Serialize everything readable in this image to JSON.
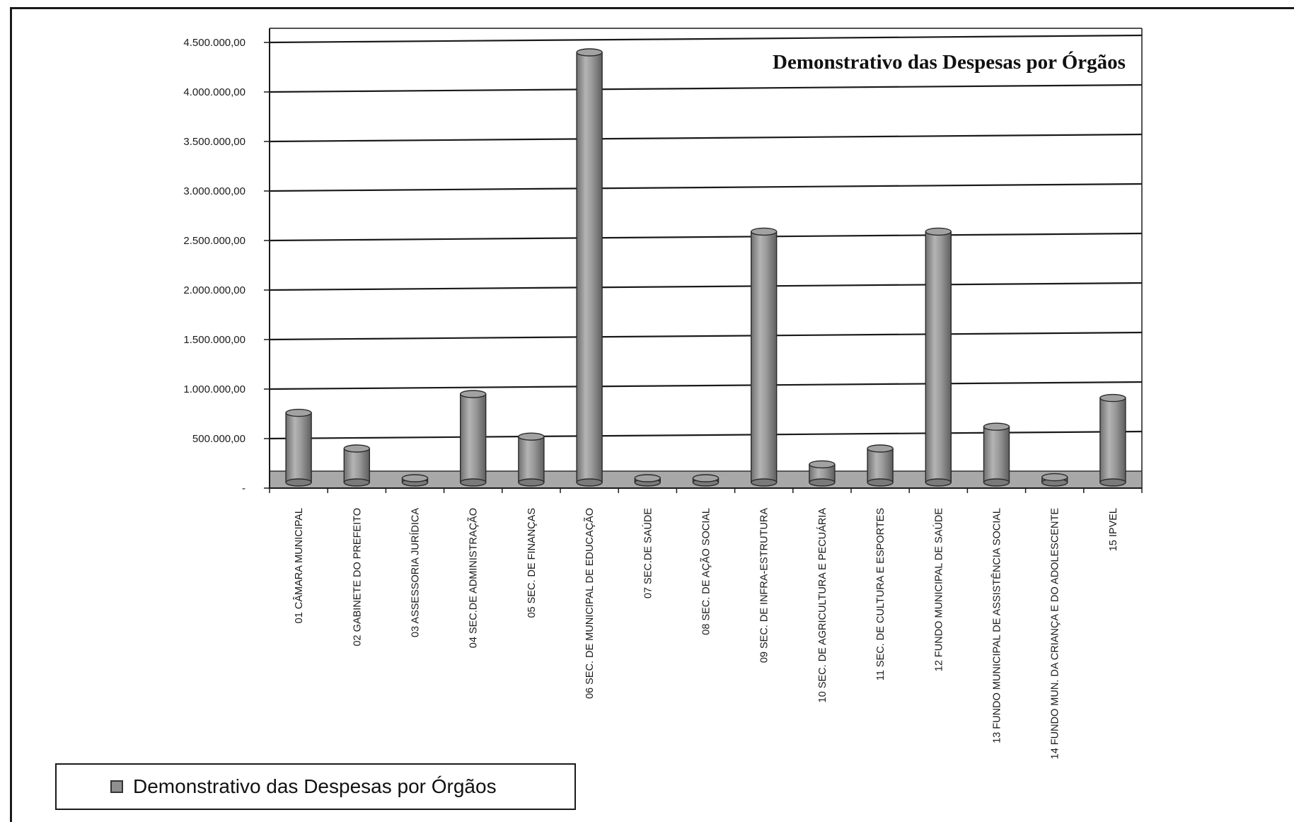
{
  "chart_data": {
    "type": "bar",
    "title": "Demonstrativo das Despesas por Órgãos",
    "categories": [
      "01 CÂMARA MUNICIPAL",
      "02 GABINETE DO PREFEITO",
      "03 ASSESSORIA JURÍDICA",
      "04 SEC.DE ADMINISTRAÇÃO",
      "05 SEC. DE  FINANÇAS",
      "06 SEC. DE MUNICIPAL DE EDUCAÇÃO",
      "07 SEC.DE SAÚDE",
      "08 SEC. DE AÇÃO SOCIAL",
      "09 SEC. DE INFRA-ESTRUTURA",
      "10 SEC. DE AGRICULTURA E PECUÁRIA",
      "11 SEC. DE CULTURA E ESPORTES",
      "12 FUNDO MUNICIPAL DE SAÚDE",
      "13 FUNDO MUNICIPAL DE ASSISTÊNCIA SOCIAL",
      "14 FUNDO MUN. DA CRIANÇA E DO ADOLESCENTE",
      "15 IPVEL"
    ],
    "series": [
      {
        "name": "Demonstrativo das Despesas por Órgãos",
        "values": [
          760000,
          400000,
          0,
          950000,
          520000,
          4400000,
          0,
          0,
          2590000,
          240000,
          400000,
          2590000,
          620000,
          110000,
          910000
        ]
      }
    ],
    "ylim": [
      0,
      4500000
    ],
    "yticks": [
      0,
      500000,
      1000000,
      1500000,
      2000000,
      2500000,
      3000000,
      3500000,
      4000000,
      4500000
    ],
    "ytick_labels": [
      "-",
      "500.000,00",
      "1.000.000,00",
      "1.500.000,00",
      "2.000.000,00",
      "2.500.000,00",
      "3.000.000,00",
      "3.500.000,00",
      "4.000.000,00",
      "4.500.000,00"
    ],
    "xlabel": "",
    "ylabel": "",
    "grid": true,
    "legend": "bottom-left",
    "bar_shape": "cylinder",
    "colors": {
      "bar": "#8f8f8f",
      "floor": "#a8a8a8",
      "gridline": "#1a1a1a"
    }
  }
}
